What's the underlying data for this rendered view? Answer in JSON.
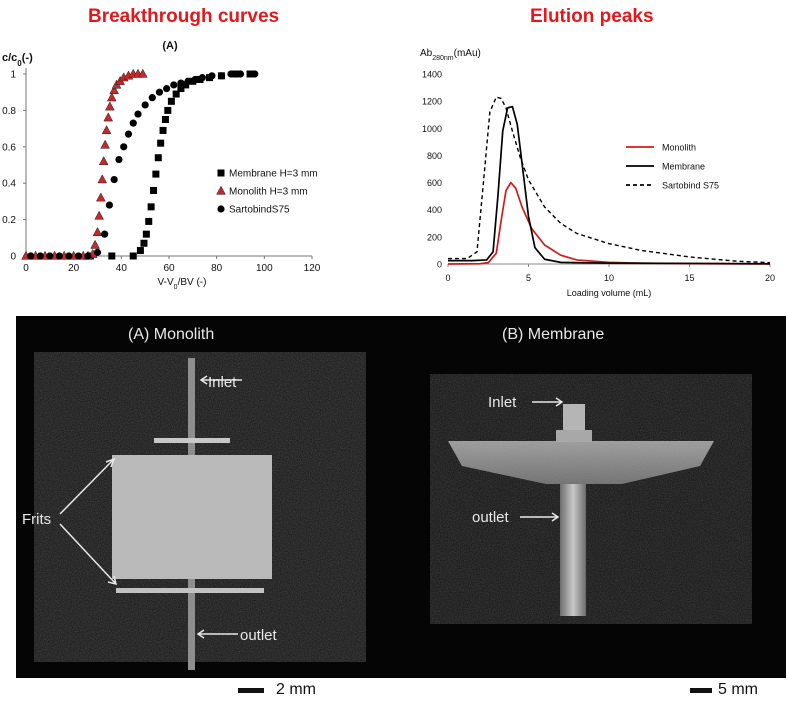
{
  "headings": {
    "left": "Breakthrough curves",
    "right": "Elution peaks"
  },
  "chart_data": [
    {
      "type": "scatter",
      "panel_label": "(A)",
      "ylabel": "c/c0(-)",
      "xlabel": "V-V0/BV (-)",
      "xlim": [
        0,
        120
      ],
      "ylim": [
        0,
        1
      ],
      "xticks": [
        0,
        20,
        40,
        60,
        80,
        100,
        120
      ],
      "yticks": [
        0,
        0.2,
        0.4,
        0.6,
        0.8,
        1
      ],
      "ytick_labels": [
        "0",
        "0.2",
        "0.4",
        "0.6",
        "0.8",
        "1"
      ],
      "legend_position": "right",
      "series": [
        {
          "name": "Membrane H=3 mm",
          "marker": "square",
          "color": "#000000",
          "x": [
            27,
            36,
            45,
            48,
            49.5,
            50.5,
            51.5,
            52.5,
            53.5,
            54.5,
            55.5,
            56.5,
            57.5,
            58.5,
            59.5,
            61,
            63,
            65,
            67,
            70,
            73,
            77,
            82,
            88,
            94
          ],
          "y": [
            0,
            0,
            0,
            0.03,
            0.07,
            0.12,
            0.19,
            0.27,
            0.36,
            0.45,
            0.54,
            0.62,
            0.69,
            0.75,
            0.8,
            0.85,
            0.89,
            0.92,
            0.94,
            0.96,
            0.97,
            0.98,
            0.99,
            1.0,
            1.0
          ]
        },
        {
          "name": "Monolith H=3 mm",
          "marker": "triangle",
          "color": "#c42a2a",
          "x": [
            0,
            4,
            8,
            12,
            16,
            20,
            24,
            26,
            28,
            29,
            30,
            30.7,
            31.4,
            32,
            32.6,
            33.2,
            33.8,
            34.5,
            35.2,
            36,
            37,
            38,
            39.5,
            41,
            43,
            45,
            47,
            49
          ],
          "y": [
            0,
            0,
            0,
            0,
            0,
            0,
            0,
            0,
            0.01,
            0.06,
            0.13,
            0.22,
            0.32,
            0.42,
            0.52,
            0.61,
            0.69,
            0.76,
            0.82,
            0.87,
            0.91,
            0.94,
            0.96,
            0.98,
            0.99,
            1.0,
            1.0,
            1.0
          ]
        },
        {
          "name": "SartobindS75",
          "marker": "circle",
          "color": "#000000",
          "x": [
            2,
            6,
            10,
            14,
            18,
            22,
            26,
            30,
            33,
            35,
            37,
            39,
            41,
            43,
            45,
            47,
            50,
            53,
            56,
            59,
            62,
            65,
            68,
            71,
            74,
            78,
            82,
            86,
            90,
            96
          ],
          "y": [
            0,
            0,
            0,
            0,
            0,
            0,
            0,
            0.02,
            0.12,
            0.28,
            0.42,
            0.53,
            0.6,
            0.67,
            0.73,
            0.78,
            0.83,
            0.87,
            0.9,
            0.92,
            0.94,
            0.95,
            0.96,
            0.97,
            0.98,
            0.99,
            0.99,
            1.0,
            1.0,
            1.0
          ]
        }
      ]
    },
    {
      "type": "line",
      "ylabel": "Ab280nm(mAu)",
      "xlabel": "Loading volume (mL)",
      "xlim": [
        0,
        20
      ],
      "ylim": [
        0,
        1400
      ],
      "xticks": [
        0,
        5,
        10,
        15,
        20
      ],
      "yticks": [
        0,
        200,
        400,
        600,
        800,
        1000,
        1200,
        1400
      ],
      "legend_position": "right",
      "series": [
        {
          "name": "Monolith",
          "color": "#d11b1b",
          "dash": "solid",
          "x": [
            0,
            2,
            2.5,
            3,
            3.3,
            3.6,
            3.9,
            4.2,
            4.6,
            5.2,
            6,
            7,
            8,
            10,
            12,
            15,
            20
          ],
          "y": [
            0,
            2,
            10,
            80,
            320,
            540,
            600,
            560,
            420,
            260,
            140,
            65,
            30,
            12,
            6,
            3,
            0
          ]
        },
        {
          "name": "Membrane",
          "color": "#000000",
          "dash": "solid",
          "x": [
            0,
            1.5,
            2.4,
            2.8,
            3.1,
            3.4,
            3.7,
            4.0,
            4.3,
            4.6,
            5.0,
            5.4,
            6,
            7,
            10,
            20
          ],
          "y": [
            25,
            25,
            30,
            90,
            500,
            980,
            1150,
            1160,
            1030,
            740,
            350,
            120,
            35,
            12,
            6,
            2
          ]
        },
        {
          "name": "Sartobind S75",
          "color": "#000000",
          "dash": "dashed",
          "x": [
            0,
            1.2,
            1.8,
            2.2,
            2.6,
            3.0,
            3.3,
            3.6,
            4.0,
            4.5,
            5.0,
            6.0,
            7.0,
            8.0,
            10.0,
            12.0,
            15.0,
            18.0,
            20.0
          ],
          "y": [
            40,
            40,
            90,
            600,
            1120,
            1230,
            1220,
            1150,
            980,
            780,
            620,
            420,
            300,
            225,
            150,
            100,
            52,
            20,
            10
          ]
        }
      ]
    }
  ],
  "images": {
    "monolith": {
      "title": "(A) Monolith",
      "labels": {
        "inlet": "Inlet",
        "frits": "Frits",
        "outlet": "outlet"
      }
    },
    "membrane": {
      "title": "(B) Membrane",
      "labels": {
        "inlet": "Inlet",
        "outlet": "outlet"
      }
    }
  },
  "scale_bars": {
    "left": "2 mm",
    "right": "5 mm"
  }
}
